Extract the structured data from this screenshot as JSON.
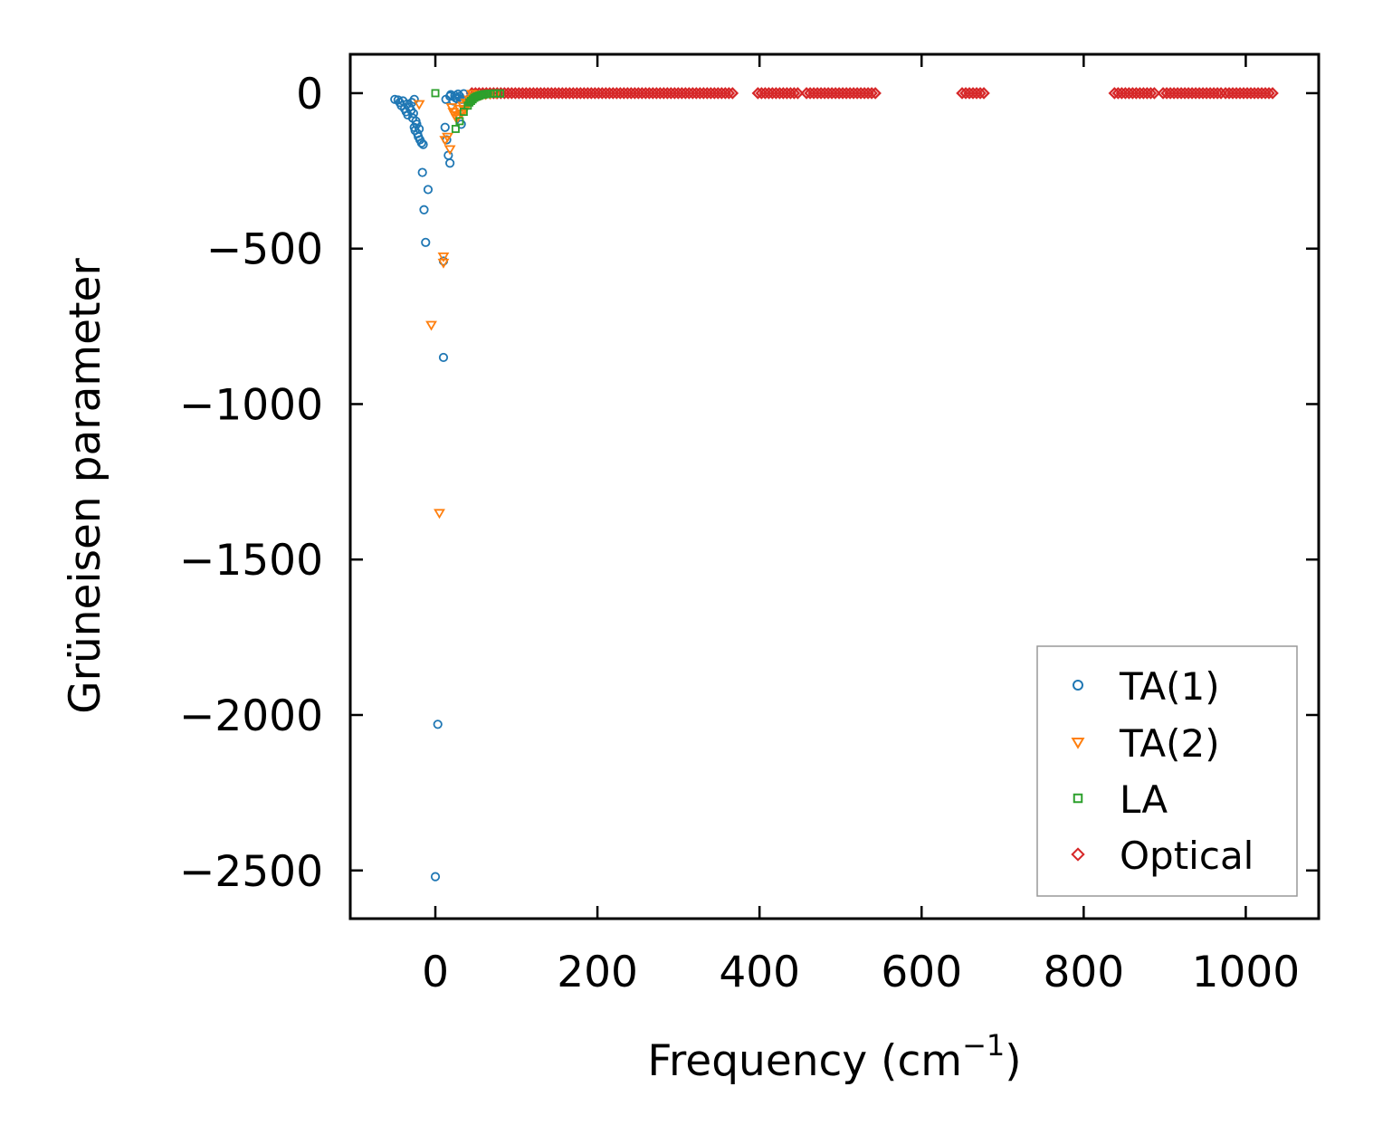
{
  "chart_data": {
    "type": "scatter",
    "xlabel": "Frequency (cm",
    "xlabel_sup": "−1",
    "xlabel_close": ")",
    "ylabel": "Grüneisen parameter",
    "xlim": [
      -105,
      1090
    ],
    "ylim": [
      -2655,
      125
    ],
    "xticks": [
      0,
      200,
      400,
      600,
      800,
      1000
    ],
    "xtick_labels": [
      "0",
      "200",
      "400",
      "600",
      "800",
      "1000"
    ],
    "yticks": [
      0,
      -500,
      -1000,
      -1500,
      -2000,
      -2500
    ],
    "ytick_labels": [
      "0",
      "−500",
      "−1000",
      "−1500",
      "−2000",
      "−2500"
    ],
    "legend_position": "lower-right",
    "series": [
      {
        "name": "TA(1)",
        "marker": "circle",
        "color": "#1f77b4",
        "points": [
          [
            -50,
            -20
          ],
          [
            -46,
            -22
          ],
          [
            -44,
            -30
          ],
          [
            -42,
            -40
          ],
          [
            -40,
            -25
          ],
          [
            -38,
            -50
          ],
          [
            -36,
            -60
          ],
          [
            -35,
            -35
          ],
          [
            -34,
            -70
          ],
          [
            -32,
            -45
          ],
          [
            -30,
            -55
          ],
          [
            -29,
            -30
          ],
          [
            -28,
            -80
          ],
          [
            -27,
            -65
          ],
          [
            -26,
            -20
          ],
          [
            -26,
            -110
          ],
          [
            -25,
            -120
          ],
          [
            -24,
            -90
          ],
          [
            -23,
            -100
          ],
          [
            -22,
            -130
          ],
          [
            -21,
            -140
          ],
          [
            -20,
            -115
          ],
          [
            -19,
            -150
          ],
          [
            -17,
            -160
          ],
          [
            -16,
            -255
          ],
          [
            -15,
            -165
          ],
          [
            -14,
            -375
          ],
          [
            -12,
            -480
          ],
          [
            -9,
            -310
          ],
          [
            3,
            -2030
          ],
          [
            0,
            -2520
          ],
          [
            10,
            -540
          ],
          [
            10,
            -850
          ],
          [
            12,
            -110
          ],
          [
            13,
            -20
          ],
          [
            14,
            -150
          ],
          [
            16,
            -200
          ],
          [
            18,
            -225
          ],
          [
            18,
            -10
          ],
          [
            19,
            -5
          ],
          [
            22,
            -25
          ],
          [
            24,
            -8
          ],
          [
            25,
            -15
          ],
          [
            27,
            -18
          ],
          [
            28,
            -3
          ],
          [
            30,
            -10
          ],
          [
            32,
            -100
          ],
          [
            33,
            -20
          ],
          [
            35,
            -2
          ]
        ]
      },
      {
        "name": "TA(2)",
        "marker": "triangle-down",
        "color": "#ff7f0e",
        "points": [
          [
            -20,
            -35
          ],
          [
            -5,
            -745
          ],
          [
            5,
            -1350
          ],
          [
            10,
            -525
          ],
          [
            10,
            -545
          ],
          [
            12,
            -150
          ],
          [
            15,
            -140
          ],
          [
            18,
            -180
          ],
          [
            20,
            -45
          ],
          [
            22,
            -60
          ],
          [
            24,
            -70
          ],
          [
            26,
            -80
          ],
          [
            28,
            -75
          ],
          [
            30,
            -50
          ],
          [
            32,
            -65
          ],
          [
            34,
            -40
          ],
          [
            36,
            -55
          ],
          [
            38,
            -30
          ],
          [
            40,
            -35
          ],
          [
            42,
            -20
          ],
          [
            44,
            -25
          ],
          [
            46,
            -15
          ],
          [
            48,
            -10
          ],
          [
            50,
            -12
          ],
          [
            52,
            -8
          ],
          [
            55,
            -6
          ],
          [
            58,
            -4
          ],
          [
            62,
            -3
          ],
          [
            68,
            -2
          ],
          [
            75,
            -1
          ],
          [
            45,
            -2
          ]
        ]
      },
      {
        "name": "LA",
        "marker": "square",
        "color": "#2ca02c",
        "points": [
          [
            0,
            0
          ],
          [
            25,
            -115
          ],
          [
            30,
            -90
          ],
          [
            35,
            -60
          ],
          [
            40,
            -40
          ],
          [
            42,
            -30
          ],
          [
            44,
            -25
          ],
          [
            46,
            -20
          ],
          [
            48,
            -15
          ],
          [
            50,
            -12
          ],
          [
            52,
            -10
          ],
          [
            54,
            -8
          ],
          [
            56,
            -6
          ],
          [
            58,
            -5
          ],
          [
            60,
            -4
          ],
          [
            62,
            -3
          ],
          [
            65,
            -2
          ],
          [
            68,
            -2
          ],
          [
            72,
            -1
          ],
          [
            76,
            -1
          ],
          [
            80,
            -1
          ]
        ]
      },
      {
        "name": "Optical",
        "marker": "diamond",
        "color": "#d62728",
        "bands": [
          [
            45,
            370
          ],
          [
            398,
            448
          ],
          [
            458,
            545
          ],
          [
            650,
            680
          ],
          [
            838,
            890
          ],
          [
            898,
            970
          ],
          [
            975,
            1035
          ]
        ]
      }
    ]
  }
}
